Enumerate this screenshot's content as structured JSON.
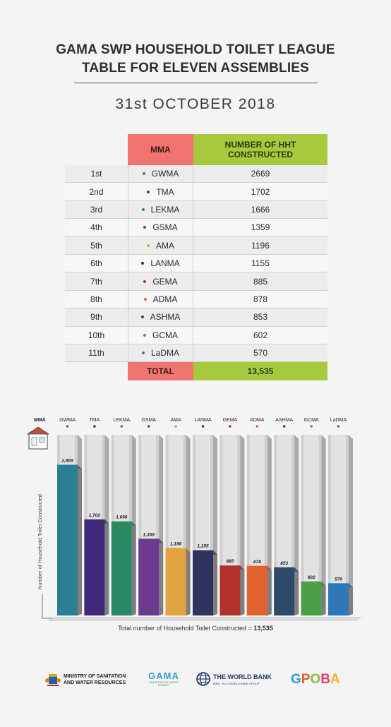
{
  "header": {
    "title_line1": "GAMA SWP HOUSEHOLD TOILET LEAGUE",
    "title_line2": "TABLE FOR ELEVEN ASSEMBLIES",
    "date": "31st OCTOBER 2018"
  },
  "table": {
    "col_mma": "MMA",
    "col_hht_line1": "NUMBER OF HHT",
    "col_hht_line2": "CONSTRUCTED",
    "rows": [
      {
        "rank": "1st",
        "mma": "GWMA",
        "value": "2669",
        "color": "#2b7f93"
      },
      {
        "rank": "2nd",
        "mma": "TMA",
        "value": "1702",
        "color": "#3e2a78"
      },
      {
        "rank": "3rd",
        "mma": "LEKMA",
        "value": "1666",
        "color": "#2a8a63"
      },
      {
        "rank": "4th",
        "mma": "GSMA",
        "value": "1359",
        "color": "#6b3a8e"
      },
      {
        "rank": "5th",
        "mma": "AMA",
        "value": "1196",
        "color": "#e3a240"
      },
      {
        "rank": "6th",
        "mma": "LANMA",
        "value": "1155",
        "color": "#2f3360"
      },
      {
        "rank": "7th",
        "mma": "GEMA",
        "value": "885",
        "color": "#b3312c"
      },
      {
        "rank": "8th",
        "mma": "ADMA",
        "value": "878",
        "color": "#e0622e"
      },
      {
        "rank": "9th",
        "mma": "ASHMA",
        "value": "853",
        "color": "#2d4a6a"
      },
      {
        "rank": "10th",
        "mma": "GCMA",
        "value": "602",
        "color": "#4a9e44"
      },
      {
        "rank": "11th",
        "mma": "LaDMA",
        "value": "570",
        "color": "#2f78b8"
      }
    ],
    "total_label": "TOTAL",
    "total_value": "13,535"
  },
  "chart_data": {
    "type": "bar",
    "xlabel": "MMA",
    "ylabel": "Number of Household Toilet Constructed",
    "categories": [
      "GWMA",
      "TMA",
      "LEKMA",
      "GSMA",
      "AMA",
      "LANMA",
      "GEMA",
      "ADMA",
      "ASHMA",
      "GCMA",
      "LaDMA"
    ],
    "values": [
      2669,
      1702,
      1666,
      1359,
      1196,
      1155,
      885,
      878,
      853,
      602,
      570
    ],
    "value_labels": [
      "2,669",
      "1,702",
      "1,666",
      "1,359",
      "1,196",
      "1,155",
      "885",
      "878",
      "853",
      "602",
      "570"
    ],
    "colors": [
      "#2b7f93",
      "#3e2a78",
      "#2a8a63",
      "#6b3a8e",
      "#e3a240",
      "#2f3360",
      "#b3312c",
      "#e0622e",
      "#2d4a6a",
      "#4a9e44",
      "#2f78b8"
    ],
    "ylim": [
      0,
      3200
    ],
    "caption_text": "Total number of Household Toilet Constructed = ",
    "caption_total": "13,535"
  },
  "footer": {
    "ministry_line1": "MINISTRY OF SANITATION",
    "ministry_line2": "AND WATER RESOURCES",
    "gama_word": "GAMA",
    "gama_sub": "SANITATION AND WATER PROJECT",
    "worldbank_title": "THE WORLD BANK",
    "worldbank_sub": "IBRD · IDA | WORLD BANK GROUP",
    "gpoba": "GPOBA"
  }
}
